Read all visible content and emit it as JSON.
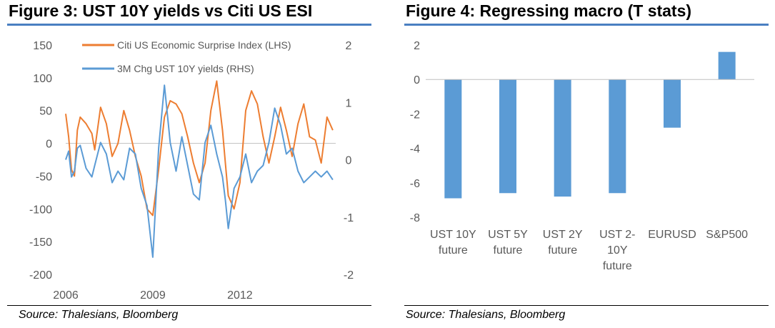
{
  "left_panel": {
    "title": "Figure 3: UST 10Y yields vs Citi US ESI",
    "source": "Source: Thalesians, Bloomberg"
  },
  "right_panel": {
    "title": "Figure 4: Regressing macro (T stats)",
    "source": "Source: Thalesians, Bloomberg"
  },
  "chart_data": [
    {
      "type": "line",
      "title": "Figure 3: UST 10Y yields vs Citi US ESI",
      "x_tick_labels": [
        "2006",
        "2009",
        "2012"
      ],
      "x_range": [
        2006.0,
        2015.3
      ],
      "y_left_ticks": [
        150,
        100,
        50,
        0,
        -50,
        -100,
        -150,
        -200
      ],
      "y_left_range": [
        -200,
        150
      ],
      "y_right_ticks": [
        2,
        1,
        0,
        -1,
        -2
      ],
      "y_right_range": [
        -2,
        2
      ],
      "grid": false,
      "legend_position": "top",
      "colors": {
        "esi": "#ed7d31",
        "yields": "#5b9bd5",
        "zero_line": "#bfbfbf"
      },
      "series": [
        {
          "name": "Citi US Economic Surprise Index (LHS)",
          "axis": "left",
          "x": [
            2006.0,
            2006.1,
            2006.2,
            2006.3,
            2006.4,
            2006.5,
            2006.7,
            2006.9,
            2007.0,
            2007.2,
            2007.4,
            2007.6,
            2007.8,
            2008.0,
            2008.2,
            2008.4,
            2008.6,
            2008.8,
            2009.0,
            2009.2,
            2009.4,
            2009.6,
            2009.8,
            2010.0,
            2010.2,
            2010.4,
            2010.6,
            2010.8,
            2011.0,
            2011.2,
            2011.4,
            2011.5,
            2011.6,
            2011.8,
            2012.0,
            2012.2,
            2012.4,
            2012.6,
            2012.8,
            2013.0,
            2013.2,
            2013.4,
            2013.6,
            2013.8,
            2014.0,
            2014.2,
            2014.4,
            2014.6,
            2014.8,
            2015.0,
            2015.2
          ],
          "y": [
            45,
            10,
            -40,
            -50,
            20,
            40,
            30,
            15,
            -10,
            55,
            30,
            -20,
            0,
            50,
            20,
            -20,
            -50,
            -100,
            -110,
            -40,
            40,
            65,
            60,
            45,
            10,
            -30,
            -60,
            -30,
            50,
            95,
            20,
            -30,
            -80,
            -100,
            -60,
            50,
            80,
            60,
            10,
            -30,
            10,
            55,
            20,
            -20,
            30,
            60,
            10,
            5,
            -30,
            40,
            20
          ]
        },
        {
          "name": "3M Chg UST 10Y yields (RHS)",
          "axis": "right",
          "x": [
            2006.0,
            2006.1,
            2006.2,
            2006.3,
            2006.4,
            2006.5,
            2006.7,
            2006.9,
            2007.0,
            2007.2,
            2007.4,
            2007.6,
            2007.8,
            2008.0,
            2008.2,
            2008.4,
            2008.6,
            2008.8,
            2009.0,
            2009.2,
            2009.4,
            2009.6,
            2009.8,
            2010.0,
            2010.2,
            2010.4,
            2010.6,
            2010.8,
            2011.0,
            2011.2,
            2011.4,
            2011.5,
            2011.6,
            2011.8,
            2012.0,
            2012.2,
            2012.4,
            2012.6,
            2012.8,
            2013.0,
            2013.2,
            2013.4,
            2013.6,
            2013.8,
            2014.0,
            2014.2,
            2014.4,
            2014.6,
            2014.8,
            2015.0,
            2015.2
          ],
          "y": [
            0.0,
            0.15,
            -0.3,
            -0.2,
            0.2,
            0.25,
            -0.15,
            -0.3,
            -0.1,
            0.3,
            0.1,
            -0.4,
            -0.2,
            -0.35,
            0.2,
            0.1,
            -0.5,
            -0.8,
            -1.7,
            0.2,
            1.3,
            0.3,
            -0.2,
            0.4,
            -0.1,
            -0.6,
            -0.7,
            0.3,
            0.6,
            0.1,
            -0.3,
            -0.7,
            -1.2,
            -0.5,
            -0.3,
            0.1,
            -0.4,
            -0.2,
            -0.1,
            0.3,
            0.9,
            0.6,
            0.1,
            0.2,
            -0.2,
            -0.4,
            -0.3,
            -0.2,
            -0.3,
            -0.2,
            -0.35
          ]
        }
      ]
    },
    {
      "type": "bar",
      "title": "Figure 4: Regressing macro (T stats)",
      "categories": [
        [
          "UST 10Y",
          "future"
        ],
        [
          "UST 5Y",
          "future"
        ],
        [
          "UST 2Y",
          "future"
        ],
        [
          "UST 2-",
          "10Y",
          "future"
        ],
        [
          "EURUSD"
        ],
        [
          "S&P500"
        ]
      ],
      "values": [
        -6.9,
        -6.6,
        -6.8,
        -6.6,
        -2.8,
        1.6
      ],
      "y_ticks": [
        2,
        0,
        -2,
        -4,
        -6,
        -8
      ],
      "ylim": [
        -8,
        2
      ],
      "grid": false,
      "colors": {
        "bar": "#5b9bd5",
        "zero_line": "#bfbfbf"
      }
    }
  ]
}
